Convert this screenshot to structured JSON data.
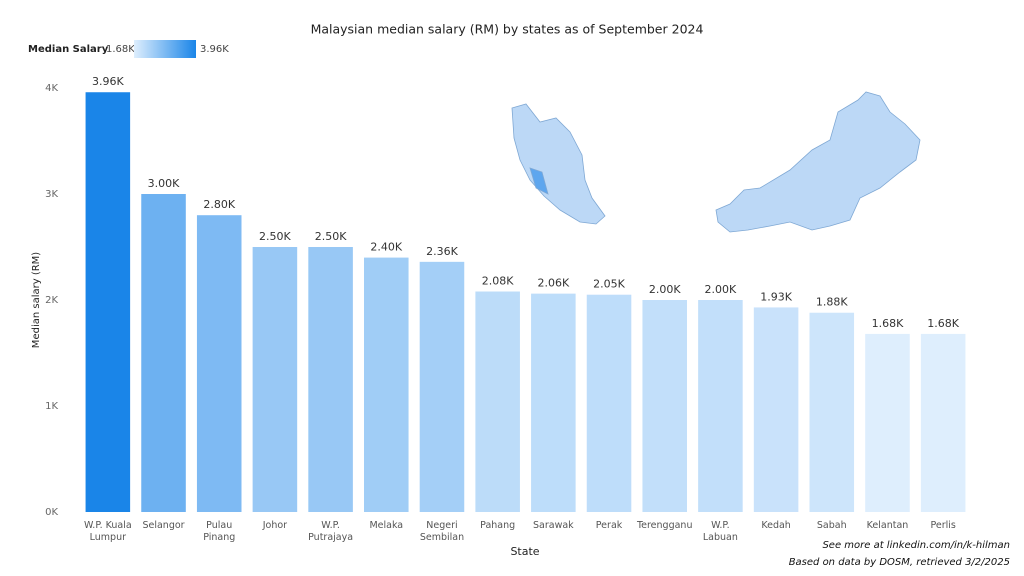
{
  "chart_data": {
    "type": "bar",
    "title": "Malaysian median salary (RM) by states as of September 2024",
    "x_label": "State",
    "y_label": "Median salary (RM)",
    "categories": [
      "W.P. Kuala Lumpur",
      "Selangor",
      "Pulau Pinang",
      "Johor",
      "W.P. Putrajaya",
      "Melaka",
      "Negeri Sembilan",
      "Pahang",
      "Sarawak",
      "Perak",
      "Terengganu",
      "W.P. Labuan",
      "Kedah",
      "Sabah",
      "Kelantan",
      "Perlis"
    ],
    "values": [
      3960,
      3000,
      2800,
      2500,
      2500,
      2400,
      2360,
      2080,
      2060,
      2050,
      2000,
      2000,
      1930,
      1880,
      1680,
      1680
    ],
    "value_labels": [
      "3.96K",
      "3.00K",
      "2.80K",
      "2.50K",
      "2.50K",
      "2.40K",
      "2.36K",
      "2.08K",
      "2.06K",
      "2.05K",
      "2.00K",
      "2.00K",
      "1.93K",
      "1.88K",
      "1.68K",
      "1.68K"
    ],
    "ylim": [
      0,
      4000
    ],
    "yticks": [
      {
        "value": 0,
        "label": "0K"
      },
      {
        "value": 1000,
        "label": "1K"
      },
      {
        "value": 2000,
        "label": "2K"
      },
      {
        "value": 3000,
        "label": "3K"
      },
      {
        "value": 4000,
        "label": "4K"
      }
    ],
    "grid": false,
    "color_legend": {
      "title": "Median Salary",
      "min": {
        "value": 1680,
        "label": "1.68K"
      },
      "max": {
        "value": 3960,
        "label": "3.96K"
      },
      "min_color": "#deeefd",
      "max_color": "#1a85e8"
    },
    "footnotes": [
      "See more at linkedin.com/in/k-hilman",
      "Based on data by DOSM, retrieved 3/2/2025"
    ]
  }
}
